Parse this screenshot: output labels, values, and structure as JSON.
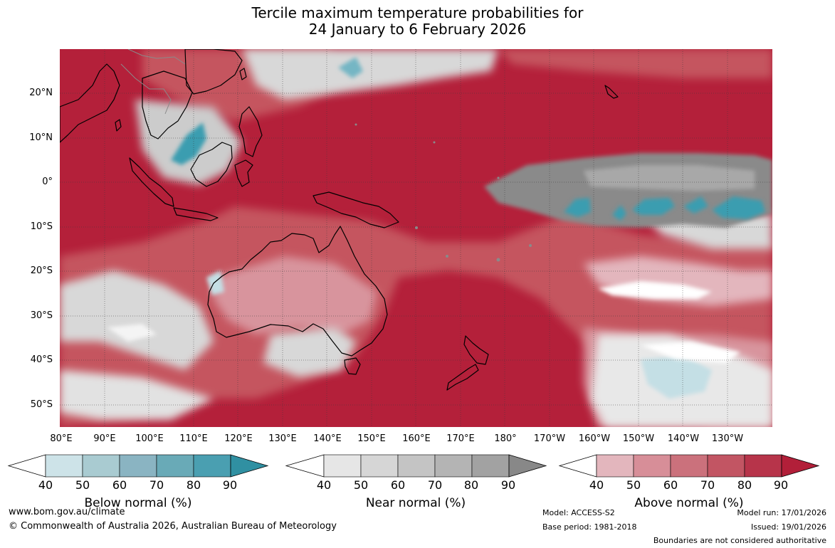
{
  "title": {
    "line1": "Tercile maximum temperature probabilities for",
    "line2": "24 January to 6 February 2026"
  },
  "lat_labels": [
    "20°N",
    "10°N",
    "0°",
    "10°S",
    "20°S",
    "30°S",
    "40°S",
    "50°S"
  ],
  "lon_labels": [
    "80°E",
    "90°E",
    "100°E",
    "110°E",
    "120°E",
    "130°E",
    "140°E",
    "150°E",
    "160°E",
    "170°E",
    "180°",
    "170°W",
    "160°W",
    "150°W",
    "140°W",
    "130°W"
  ],
  "colors": {
    "above_dark": "#b4203a",
    "above_mid": "#c5545f",
    "above_light": "#e3b6bd",
    "near_dark": "#8a8a8a",
    "near_light": "#d8d8d8",
    "below_dark": "#3097a9",
    "below_light": "#b6d8df",
    "coast": "#000000",
    "border": "#8a8a8a"
  },
  "colorbars": [
    {
      "name": "Below normal (%)",
      "ticks": [
        "40",
        "50",
        "60",
        "70",
        "80",
        "90"
      ],
      "colors": [
        "#cde3e8",
        "#a9cbd1",
        "#8ab4c2",
        "#69aab7",
        "#4a9fb1",
        "#3090a2"
      ]
    },
    {
      "name": "Near normal (%)",
      "ticks": [
        "40",
        "50",
        "60",
        "70",
        "80",
        "90"
      ],
      "colors": [
        "#e6e6e6",
        "#d6d6d6",
        "#c4c4c4",
        "#b4b4b4",
        "#a2a2a2",
        "#888888"
      ]
    },
    {
      "name": "Above normal (%)",
      "ticks": [
        "40",
        "50",
        "60",
        "70",
        "80",
        "90"
      ],
      "colors": [
        "#e3b6bd",
        "#d78e98",
        "#cb717c",
        "#c25563",
        "#b7344a",
        "#b21f39"
      ]
    }
  ],
  "footer": {
    "website": "www.bom.gov.au/climate",
    "copyright": "© Commonwealth of Australia 2026, Australian Bureau of Meteorology",
    "model": "Model: ACCESS-S2",
    "base_period": "Base period: 1981-2018",
    "model_run": "Model run: 17/01/2026",
    "issued": "Issued: 19/01/2026",
    "disclaimer": "Boundaries are not considered authoritative"
  }
}
